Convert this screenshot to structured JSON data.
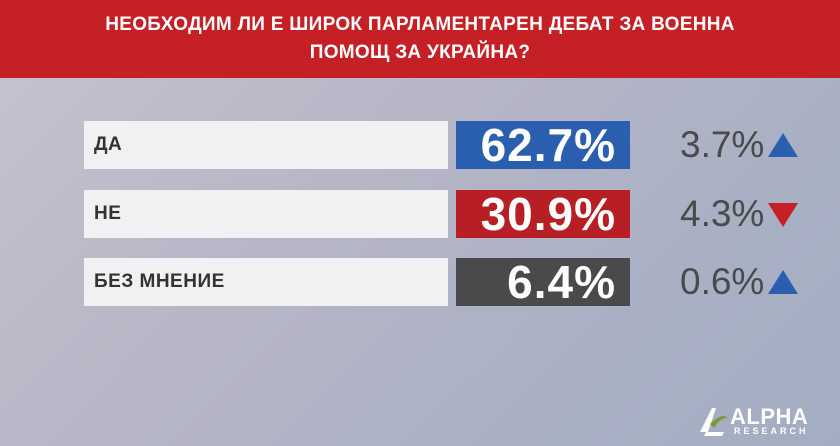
{
  "header": {
    "title_line1": "НЕОБХОДИМ ЛИ Е ШИРОК ПАРЛАМЕНТАРЕН ДЕБАТ ЗА ВОЕННА",
    "title_line2": "ПОМОЩ ЗА УКРАЙНА?"
  },
  "chart_data": {
    "type": "bar",
    "categories": [
      "ДА",
      "НЕ",
      "БЕЗ МНЕНИЕ"
    ],
    "values": [
      62.7,
      30.9,
      6.4
    ],
    "value_labels": [
      "62.7%",
      "30.9%",
      "6.4%"
    ],
    "changes": [
      {
        "label": "3.7%",
        "direction": "up",
        "color": "#2a5fb0"
      },
      {
        "label": "4.3%",
        "direction": "down",
        "color": "#c42026"
      },
      {
        "label": "0.6%",
        "direction": "up",
        "color": "#2a5fb0"
      }
    ],
    "bar_colors": [
      "#2a5fb0",
      "#b71f25",
      "#4a4a4c"
    ],
    "unit": "%"
  },
  "logo": {
    "name": "ALPHA",
    "sub": "RESEARCH"
  }
}
